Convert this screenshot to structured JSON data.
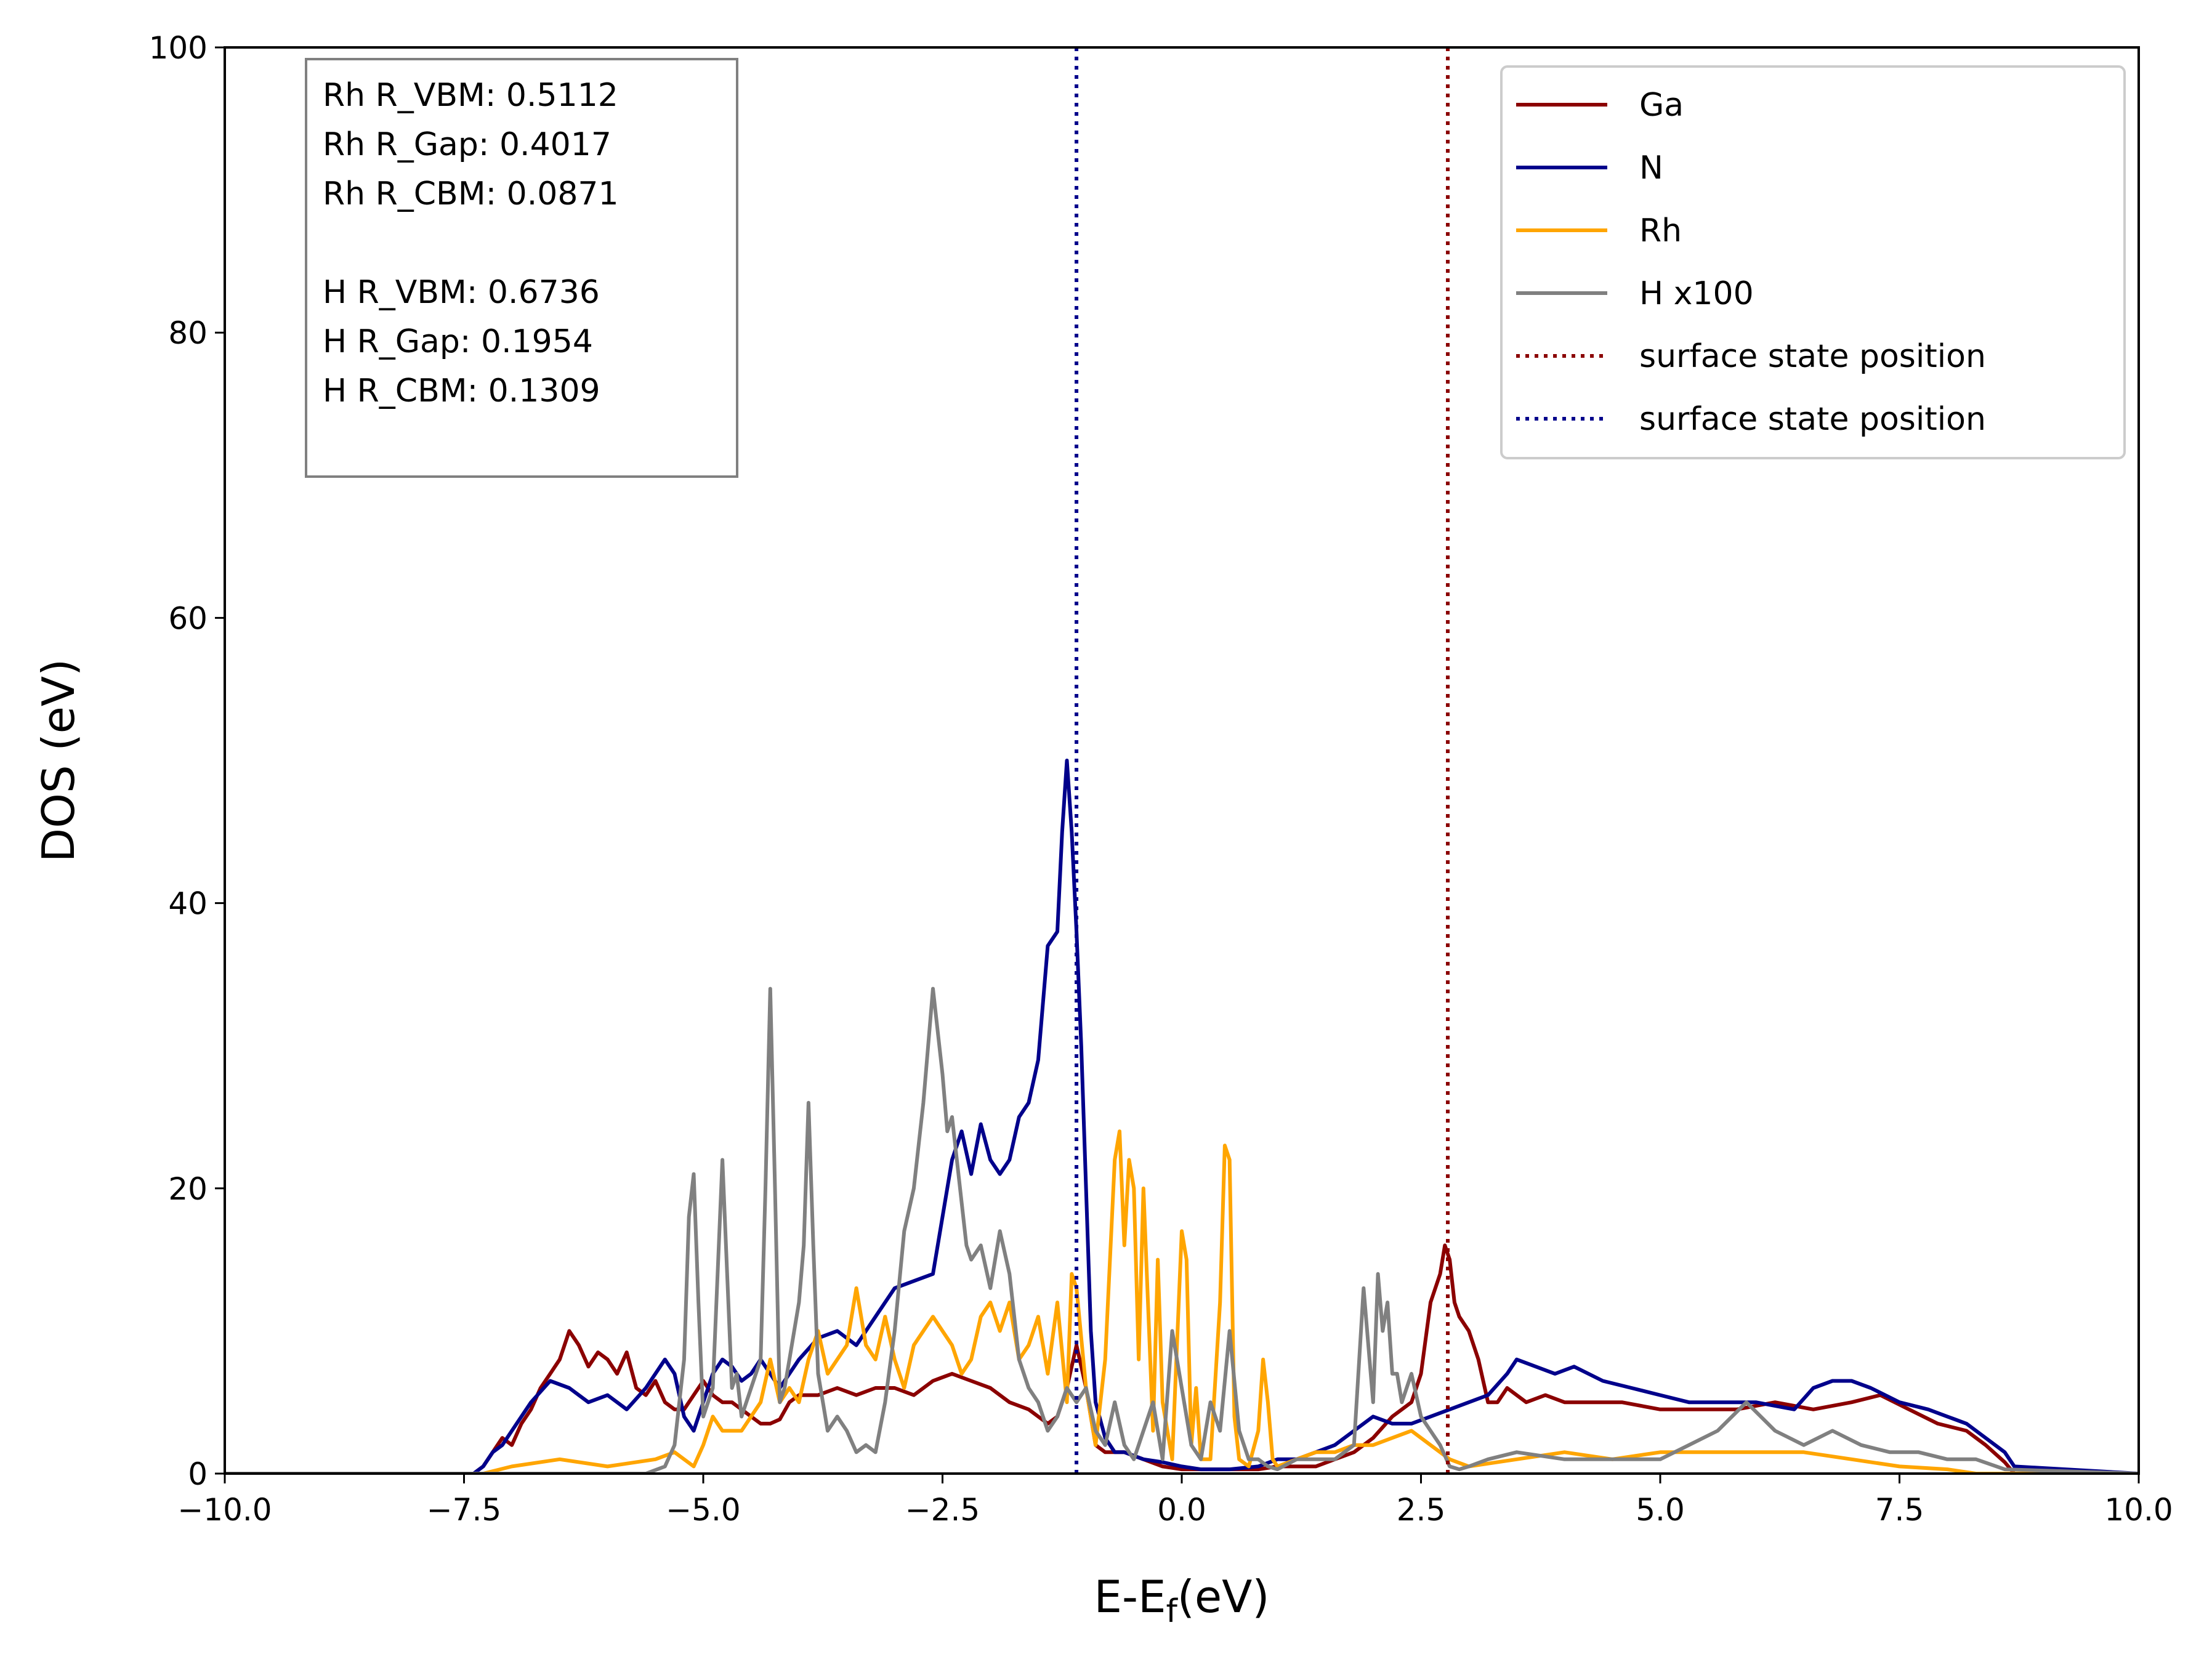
{
  "chart_data": {
    "type": "line",
    "title": "",
    "xlabel": "E-E",
    "xlabel_subscript": "f",
    "xlabel_suffix": "(eV)",
    "ylabel": "DOS (eV)",
    "xlim": [
      -10,
      10
    ],
    "ylim": [
      0,
      100
    ],
    "xticks": [
      -10,
      -7.5,
      -5,
      -2.5,
      0,
      2.5,
      5,
      7.5,
      10
    ],
    "xtick_labels": [
      "−10.0",
      "−7.5",
      "−5.0",
      "−2.5",
      "0.0",
      "2.5",
      "5.0",
      "7.5",
      "10.0"
    ],
    "yticks": [
      0,
      20,
      40,
      60,
      80,
      100
    ],
    "ytick_labels": [
      "0",
      "20",
      "40",
      "60",
      "80",
      "100"
    ],
    "grid": false,
    "legend_position": "top-right",
    "series": [
      {
        "name": "Ga",
        "color": "#8b0000",
        "x": [
          -10,
          -7.4,
          -7.3,
          -7.2,
          -7.1,
          -7.0,
          -6.9,
          -6.8,
          -6.7,
          -6.6,
          -6.5,
          -6.4,
          -6.3,
          -6.2,
          -6.1,
          -6.0,
          -5.9,
          -5.8,
          -5.7,
          -5.6,
          -5.5,
          -5.4,
          -5.3,
          -5.2,
          -5.1,
          -5.0,
          -4.9,
          -4.8,
          -4.7,
          -4.6,
          -4.5,
          -4.4,
          -4.3,
          -4.2,
          -4.1,
          -4.0,
          -3.9,
          -3.8,
          -3.6,
          -3.4,
          -3.2,
          -3.0,
          -2.8,
          -2.6,
          -2.4,
          -2.2,
          -2.0,
          -1.8,
          -1.6,
          -1.4,
          -1.3,
          -1.2,
          -1.1,
          -1.0,
          -0.9,
          -0.8,
          -0.6,
          -0.4,
          -0.2,
          0.0,
          0.2,
          0.5,
          0.8,
          1.0,
          1.2,
          1.4,
          1.6,
          1.8,
          2.0,
          2.2,
          2.4,
          2.5,
          2.6,
          2.7,
          2.75,
          2.8,
          2.85,
          2.9,
          3.0,
          3.1,
          3.2,
          3.3,
          3.4,
          3.6,
          3.8,
          4.0,
          4.3,
          4.6,
          5.0,
          5.4,
          5.8,
          6.2,
          6.6,
          7.0,
          7.3,
          7.6,
          7.9,
          8.2,
          8.4,
          8.6,
          8.7,
          10
        ],
        "y": [
          0,
          0,
          0.5,
          1.5,
          2.5,
          2.0,
          3.5,
          4.5,
          6,
          7,
          8,
          10,
          9,
          7.5,
          8.5,
          8,
          7,
          8.5,
          6,
          5.5,
          6.5,
          5,
          4.5,
          4.5,
          5.5,
          6.5,
          5.5,
          5,
          5,
          4.5,
          4,
          3.5,
          3.5,
          3.8,
          5,
          5.5,
          5.5,
          5.5,
          6,
          5.5,
          6,
          6,
          5.5,
          6.5,
          7,
          6.5,
          6,
          5,
          4.5,
          3.5,
          4,
          6,
          9,
          6,
          2,
          1.5,
          1.5,
          1,
          0.5,
          0.3,
          0.3,
          0.3,
          0.3,
          0.5,
          0.5,
          0.5,
          1,
          1.5,
          2.5,
          4,
          5,
          7,
          12,
          14,
          16,
          15,
          12,
          11,
          10,
          8,
          5,
          5,
          6,
          5,
          5.5,
          5,
          5,
          5,
          4.5,
          4.5,
          4.5,
          5,
          4.5,
          5,
          5.5,
          4.5,
          3.5,
          3,
          2,
          0.8,
          0,
          0
        ]
      },
      {
        "name": "N",
        "color": "#00008b",
        "x": [
          -10,
          -7.4,
          -7.3,
          -7.2,
          -7.1,
          -7.0,
          -6.9,
          -6.8,
          -6.6,
          -6.4,
          -6.2,
          -6.0,
          -5.8,
          -5.6,
          -5.4,
          -5.3,
          -5.2,
          -5.1,
          -5.0,
          -4.9,
          -4.8,
          -4.7,
          -4.6,
          -4.5,
          -4.4,
          -4.3,
          -4.2,
          -4.0,
          -3.8,
          -3.6,
          -3.4,
          -3.2,
          -3.0,
          -2.8,
          -2.6,
          -2.5,
          -2.4,
          -2.3,
          -2.2,
          -2.1,
          -2.0,
          -1.9,
          -1.8,
          -1.7,
          -1.6,
          -1.5,
          -1.4,
          -1.3,
          -1.25,
          -1.2,
          -1.15,
          -1.1,
          -1.05,
          -1.0,
          -0.95,
          -0.9,
          -0.8,
          -0.7,
          -0.6,
          -0.4,
          -0.2,
          0.0,
          0.2,
          0.5,
          0.8,
          1.0,
          1.2,
          1.4,
          1.6,
          1.8,
          2.0,
          2.2,
          2.4,
          2.6,
          2.8,
          3.0,
          3.2,
          3.4,
          3.5,
          3.7,
          3.9,
          4.1,
          4.4,
          4.7,
          5.0,
          5.3,
          5.6,
          6.0,
          6.4,
          6.6,
          6.8,
          7.0,
          7.2,
          7.5,
          7.8,
          8.0,
          8.2,
          8.4,
          8.6,
          8.7,
          10
        ],
        "y": [
          0,
          0,
          0.5,
          1.5,
          2,
          3,
          4,
          5,
          6.5,
          6,
          5,
          5.5,
          4.5,
          6,
          8,
          7,
          4,
          3,
          5,
          7,
          8,
          7.5,
          6.5,
          7,
          8,
          7,
          6,
          8,
          9.5,
          10,
          9,
          11,
          13,
          13.5,
          14,
          18,
          22,
          24,
          21,
          24.5,
          22,
          21,
          22,
          25,
          26,
          29,
          37,
          38,
          45,
          50,
          45,
          38,
          30,
          20,
          10,
          5,
          2.5,
          1.5,
          1.5,
          1,
          0.8,
          0.5,
          0.3,
          0.3,
          0.5,
          1,
          1,
          1.5,
          2,
          3,
          4,
          3.5,
          3.5,
          4,
          4.5,
          5,
          5.5,
          7,
          8,
          7.5,
          7,
          7.5,
          6.5,
          6,
          5.5,
          5,
          5,
          5,
          4.5,
          6,
          6.5,
          6.5,
          6,
          5,
          4.5,
          4,
          3.5,
          2.5,
          1.5,
          0.5,
          0
        ]
      },
      {
        "name": "Rh",
        "color": "#ffa500",
        "x": [
          -10,
          -7.3,
          -7.0,
          -6.5,
          -6.0,
          -5.5,
          -5.3,
          -5.1,
          -5.0,
          -4.9,
          -4.8,
          -4.6,
          -4.4,
          -4.3,
          -4.2,
          -4.1,
          -4.0,
          -3.9,
          -3.8,
          -3.7,
          -3.6,
          -3.5,
          -3.4,
          -3.3,
          -3.2,
          -3.1,
          -3.0,
          -2.9,
          -2.8,
          -2.7,
          -2.6,
          -2.5,
          -2.4,
          -2.3,
          -2.2,
          -2.1,
          -2.0,
          -1.9,
          -1.8,
          -1.7,
          -1.6,
          -1.5,
          -1.4,
          -1.3,
          -1.2,
          -1.15,
          -1.1,
          -1.0,
          -0.9,
          -0.8,
          -0.7,
          -0.65,
          -0.6,
          -0.55,
          -0.5,
          -0.45,
          -0.4,
          -0.3,
          -0.25,
          -0.2,
          -0.1,
          0.0,
          0.05,
          0.1,
          0.15,
          0.2,
          0.3,
          0.4,
          0.45,
          0.5,
          0.55,
          0.6,
          0.7,
          0.8,
          0.85,
          0.9,
          0.95,
          1.0,
          1.2,
          1.4,
          1.6,
          1.8,
          2.0,
          2.2,
          2.4,
          2.6,
          2.8,
          3.0,
          3.5,
          4.0,
          4.5,
          5.0,
          5.5,
          6.0,
          6.5,
          7.0,
          7.5,
          8.0,
          8.3,
          10
        ],
        "y": [
          0,
          0,
          0.5,
          1,
          0.5,
          1,
          1.5,
          0.5,
          2,
          4,
          3,
          3,
          5,
          8,
          5,
          6,
          5,
          8,
          10,
          7,
          8,
          9,
          13,
          9,
          8,
          11,
          8,
          6,
          9,
          10,
          11,
          10,
          9,
          7,
          8,
          11,
          12,
          10,
          12,
          8,
          9,
          11,
          7,
          12,
          5,
          14,
          13,
          6,
          2,
          8,
          22,
          24,
          16,
          22,
          20,
          8,
          20,
          3,
          15,
          5,
          1,
          17,
          15,
          2,
          6,
          1,
          1,
          12,
          23,
          22,
          4,
          1,
          0.5,
          3,
          8,
          5,
          1,
          0.5,
          1,
          1.5,
          1.5,
          2,
          2,
          2.5,
          3,
          2,
          1,
          0.5,
          1,
          1.5,
          1,
          1.5,
          1.5,
          1.5,
          1.5,
          1,
          0.5,
          0.3,
          0,
          0
        ]
      },
      {
        "name": "H x100",
        "color": "#808080",
        "x": [
          -10,
          -5.6,
          -5.4,
          -5.3,
          -5.2,
          -5.15,
          -5.1,
          -5.05,
          -5.0,
          -4.9,
          -4.85,
          -4.8,
          -4.75,
          -4.7,
          -4.65,
          -4.6,
          -4.5,
          -4.4,
          -4.35,
          -4.3,
          -4.25,
          -4.2,
          -4.15,
          -4.1,
          -4.0,
          -3.95,
          -3.9,
          -3.85,
          -3.8,
          -3.75,
          -3.7,
          -3.6,
          -3.5,
          -3.4,
          -3.3,
          -3.2,
          -3.1,
          -3.0,
          -2.9,
          -2.8,
          -2.7,
          -2.6,
          -2.5,
          -2.45,
          -2.4,
          -2.35,
          -2.3,
          -2.25,
          -2.2,
          -2.1,
          -2.0,
          -1.9,
          -1.8,
          -1.7,
          -1.6,
          -1.5,
          -1.4,
          -1.3,
          -1.2,
          -1.1,
          -1.0,
          -0.9,
          -0.8,
          -0.7,
          -0.6,
          -0.5,
          -0.4,
          -0.3,
          -0.2,
          -0.1,
          0.0,
          0.1,
          0.2,
          0.3,
          0.4,
          0.5,
          0.6,
          0.7,
          0.8,
          0.9,
          1.0,
          1.2,
          1.4,
          1.6,
          1.8,
          1.9,
          1.95,
          2.0,
          2.05,
          2.1,
          2.15,
          2.2,
          2.25,
          2.3,
          2.4,
          2.5,
          2.6,
          2.7,
          2.8,
          2.9,
          3.0,
          3.2,
          3.5,
          4.0,
          4.5,
          5.0,
          5.3,
          5.6,
          5.9,
          6.2,
          6.5,
          6.8,
          7.1,
          7.4,
          7.7,
          8.0,
          8.3,
          8.6,
          10
        ],
        "y": [
          0,
          0,
          0.5,
          2,
          8,
          18,
          21,
          12,
          4,
          6,
          14,
          22,
          14,
          6,
          7,
          4,
          6,
          8,
          20,
          34,
          20,
          5,
          6,
          8,
          12,
          16,
          26,
          16,
          7,
          5,
          3,
          4,
          3,
          1.5,
          2,
          1.5,
          5,
          10,
          17,
          20,
          26,
          34,
          28,
          24,
          25,
          22,
          19,
          16,
          15,
          16,
          13,
          17,
          14,
          8,
          6,
          5,
          3,
          4,
          6,
          5,
          6,
          3,
          2,
          5,
          2,
          1,
          3,
          5,
          1,
          10,
          6,
          2,
          1,
          5,
          3,
          10,
          3,
          1,
          1,
          0.5,
          0.3,
          1,
          1,
          1,
          2,
          13,
          9,
          5,
          14,
          10,
          12,
          7,
          7,
          5,
          7,
          4,
          3,
          2,
          0.5,
          0.3,
          0.5,
          1,
          1.5,
          1,
          1,
          1,
          2,
          3,
          5,
          3,
          2,
          3,
          2,
          1.5,
          1.5,
          1,
          1,
          0.3,
          0
        ]
      }
    ],
    "vlines": [
      {
        "name": "surface state position",
        "x": 2.78,
        "color": "#8b0000",
        "style": "dotted"
      },
      {
        "name": "surface state position",
        "x": -1.1,
        "color": "#00008b",
        "style": "dotted"
      }
    ],
    "legend": [
      "Ga",
      "N",
      "Rh",
      "H x100",
      "surface state position",
      "surface state position"
    ],
    "annotation_lines": [
      "Rh R_VBM: 0.5112",
      "Rh R_Gap: 0.4017",
      "Rh R_CBM: 0.0871",
      "",
      "H  R_VBM: 0.6736",
      "H  R_Gap: 0.1954",
      "H  R_CBM: 0.1309"
    ]
  }
}
